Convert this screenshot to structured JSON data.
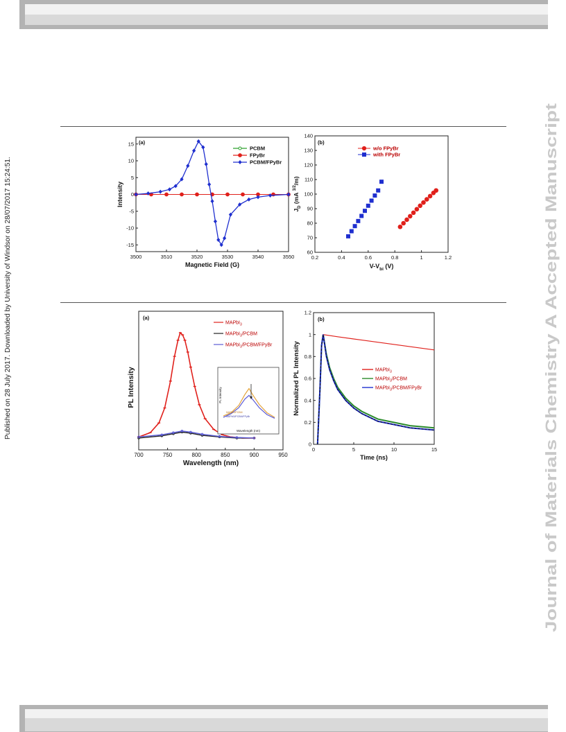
{
  "watermark": "Journal of Materials Chemistry A Accepted Manuscript",
  "sidebar_note": "Published on 28 July 2017. Downloaded by University of Windsor on 28/07/2017 15:24:51.",
  "chart_data": [
    {
      "type": "line",
      "panel_label": "(a)",
      "xlabel": "Magnetic Field (G)",
      "ylabel": "Intensity",
      "xlim": [
        3500,
        3550
      ],
      "ylim": [
        -17,
        17
      ],
      "xticks": [
        "3500",
        "3510",
        "3520",
        "3530",
        "3540",
        "3550"
      ],
      "yticks": [
        "15",
        "10",
        "5",
        "0",
        "-5",
        "-10",
        "-15"
      ],
      "legend_position": "top-right",
      "series": [
        {
          "name": "PCBM",
          "color": "#2ca02c",
          "marker": "open-circle",
          "x": [
            3500,
            3505,
            3510,
            3515,
            3520,
            3525,
            3530,
            3535,
            3540,
            3545,
            3550
          ],
          "y": [
            0,
            0,
            0,
            0,
            0,
            0,
            0,
            0,
            0,
            0,
            0
          ]
        },
        {
          "name": "FPyBr",
          "color": "#e0201b",
          "marker": "filled-circle",
          "x": [
            3500,
            3505,
            3510,
            3515,
            3520,
            3525,
            3530,
            3535,
            3540,
            3545,
            3550
          ],
          "y": [
            0,
            0,
            0,
            0,
            0,
            0,
            0,
            0,
            0,
            0,
            0
          ]
        },
        {
          "name": "PCBM/FPyBr",
          "color": "#1f2fcf",
          "marker": "filled-diamond",
          "x": [
            3500,
            3504,
            3508,
            3511,
            3513,
            3515,
            3517,
            3519,
            3520.5,
            3522,
            3523,
            3524,
            3525,
            3526,
            3527,
            3528,
            3529,
            3531,
            3534,
            3537,
            3540,
            3544,
            3550
          ],
          "y": [
            0,
            0.3,
            0.8,
            1.5,
            2.5,
            4.5,
            8.5,
            13,
            15.8,
            14,
            9,
            3,
            -2,
            -8,
            -13.5,
            -15,
            -13,
            -6,
            -3,
            -1.5,
            -0.8,
            -0.3,
            0
          ]
        }
      ]
    },
    {
      "type": "scatter",
      "panel_label": "(b)",
      "xlabel": "V-V",
      "xlabel_sub": "bi",
      "xlabel_unit": " (V)",
      "ylabel": "J",
      "ylabel_sub": "D",
      "ylabel_unit_a": " (mA ",
      "ylabel_sup": "1/2",
      "ylabel_unit_b": "/m)",
      "xlim": [
        0.2,
        1.2
      ],
      "ylim": [
        60,
        140
      ],
      "xticks": [
        "0.2",
        "0.4",
        "0.6",
        "0.8",
        "1",
        "1.2"
      ],
      "yticks": [
        "140",
        "130",
        "120",
        "110",
        "100",
        "90",
        "80",
        "70",
        "60"
      ],
      "legend_position": "top-left",
      "series": [
        {
          "name": "w/o FPyBr",
          "color": "#e0201b",
          "marker": "filled-circle",
          "x": [
            0.84,
            0.865,
            0.89,
            0.915,
            0.94,
            0.965,
            0.99,
            1.015,
            1.04,
            1.065,
            1.09,
            1.11
          ],
          "y": [
            77.5,
            80,
            82.4,
            84.8,
            87.2,
            89.6,
            92,
            94.2,
            96.4,
            98.6,
            100.8,
            102.5
          ]
        },
        {
          "name": "with FPyBr",
          "color": "#1f2fcf",
          "marker": "filled-square",
          "x": [
            0.45,
            0.475,
            0.5,
            0.525,
            0.55,
            0.575,
            0.6,
            0.625,
            0.65,
            0.675,
            0.7
          ],
          "y": [
            71,
            74.5,
            78,
            81.5,
            85,
            88.5,
            92,
            95.5,
            99,
            102.5,
            108.5
          ]
        }
      ]
    },
    {
      "type": "line",
      "panel_label": "(a)",
      "xlabel": "Wavelength (nm)",
      "ylabel": "PL Intensity",
      "xlim": [
        700,
        950
      ],
      "xticks": [
        "700",
        "750",
        "800",
        "850",
        "900",
        "950"
      ],
      "legend_position": "top-right",
      "series": [
        {
          "name": "MAPbI",
          "name_sub": "3",
          "color": "#e0201b",
          "x": [
            700,
            720,
            735,
            745,
            755,
            762,
            768,
            772,
            776,
            780,
            785,
            790,
            797,
            805,
            815,
            830,
            845,
            860,
            880,
            900
          ],
          "y": [
            0.03,
            0.07,
            0.16,
            0.3,
            0.55,
            0.78,
            0.93,
            1.0,
            0.98,
            0.93,
            0.82,
            0.68,
            0.5,
            0.33,
            0.2,
            0.1,
            0.05,
            0.03,
            0.02,
            0.02
          ]
        },
        {
          "name": "MAPbI",
          "name_sub": "3",
          "name_rest": "/PCBM",
          "color": "#222222",
          "x": [
            700,
            740,
            760,
            775,
            790,
            810,
            840,
            870,
            900
          ],
          "y": [
            0.02,
            0.04,
            0.06,
            0.075,
            0.065,
            0.045,
            0.03,
            0.02,
            0.02
          ]
        },
        {
          "name": "MAPbI",
          "name_sub": "3",
          "name_rest": "/PCBM/FPyBr",
          "color": "#5b5bd6",
          "x": [
            700,
            740,
            760,
            775,
            790,
            810,
            840,
            870,
            900
          ],
          "y": [
            0.03,
            0.05,
            0.07,
            0.085,
            0.075,
            0.055,
            0.035,
            0.025,
            0.02
          ]
        }
      ],
      "inset": {
        "ylabel": "PL Intensity",
        "xlabel": "Wavelength (nm)",
        "legend": [
          "MAPbI3/PCBM",
          "MAPbI3/PCBM/FPyBr"
        ]
      }
    },
    {
      "type": "line",
      "panel_label": "(b)",
      "xlabel": "Time (ns)",
      "ylabel": "Normalized PL Intensity",
      "xlim": [
        0,
        15
      ],
      "ylim": [
        0,
        1.2
      ],
      "xticks": [
        "0",
        "5",
        "10",
        "15"
      ],
      "yticks": [
        "1.2",
        "1",
        "0.8",
        "0.6",
        "0.4",
        "0.2",
        "0"
      ],
      "legend_position": "center-right",
      "series": [
        {
          "name": "MAPbI",
          "name_sub": "3",
          "color": "#e0201b",
          "x": [
            0.5,
            0.8,
            1.0,
            1.2,
            3,
            6,
            9,
            12,
            15
          ],
          "y": [
            0,
            0.5,
            0.9,
            1.0,
            0.98,
            0.95,
            0.92,
            0.89,
            0.86
          ]
        },
        {
          "name": "MAPbI",
          "name_sub": "3",
          "name_rest": "/PCBM",
          "color": "#2a8a2a",
          "x": [
            0.5,
            0.8,
            1.0,
            1.2,
            1.6,
            2,
            2.5,
            3,
            4,
            5,
            6,
            8,
            10,
            12,
            15
          ],
          "y": [
            0,
            0.5,
            0.9,
            1.0,
            0.82,
            0.7,
            0.6,
            0.52,
            0.42,
            0.35,
            0.3,
            0.23,
            0.2,
            0.17,
            0.15
          ]
        },
        {
          "name": "MAPbI",
          "name_sub": "3",
          "name_rest": "/PCBM/FPyBr",
          "color": "#1f2fcf",
          "x": [
            0.5,
            0.8,
            1.0,
            1.2,
            1.6,
            2,
            2.5,
            3,
            4,
            5,
            6,
            8,
            10,
            12,
            15
          ],
          "y": [
            0,
            0.5,
            0.9,
            1.0,
            0.8,
            0.68,
            0.58,
            0.5,
            0.4,
            0.33,
            0.28,
            0.21,
            0.18,
            0.15,
            0.13
          ]
        }
      ]
    }
  ]
}
